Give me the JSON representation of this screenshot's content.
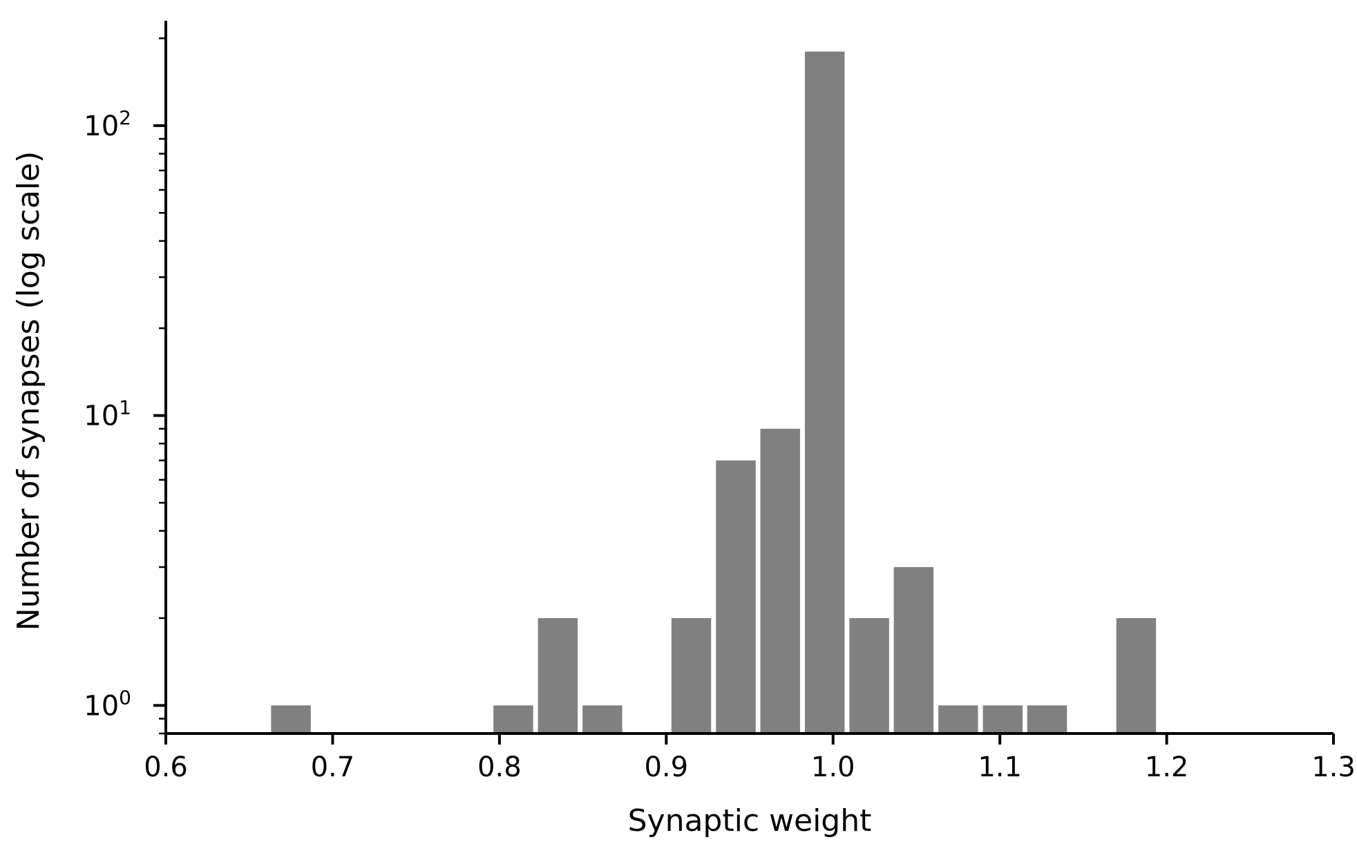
{
  "chart_data": {
    "type": "bar",
    "title": "",
    "xlabel": "Synaptic weight",
    "ylabel": "Number of synapses (log scale)",
    "xlim": [
      0.6,
      1.3
    ],
    "ylim": [
      0.8,
      230
    ],
    "yscale": "log",
    "grid": false,
    "legend": "none",
    "bar_color": "#808080",
    "bin_width": 0.025,
    "x_ticks": [
      "0.6",
      "0.7",
      "0.8",
      "0.9",
      "1.0",
      "1.1",
      "1.2",
      "1.3"
    ],
    "y_ticks": [
      {
        "base": "10",
        "exp": "0",
        "value": 1
      },
      {
        "base": "10",
        "exp": "1",
        "value": 10
      },
      {
        "base": "10",
        "exp": "2",
        "value": 100
      }
    ],
    "bins": [
      {
        "x_start": 0.6625,
        "count": 1
      },
      {
        "x_start": 0.7958,
        "count": 1
      },
      {
        "x_start": 0.8225,
        "count": 2
      },
      {
        "x_start": 0.8492,
        "count": 1
      },
      {
        "x_start": 0.9025,
        "count": 2
      },
      {
        "x_start": 0.9292,
        "count": 7
      },
      {
        "x_start": 0.9558,
        "count": 9
      },
      {
        "x_start": 0.9825,
        "count": 180
      },
      {
        "x_start": 1.0092,
        "count": 2
      },
      {
        "x_start": 1.0358,
        "count": 3
      },
      {
        "x_start": 1.0625,
        "count": 1
      },
      {
        "x_start": 1.0892,
        "count": 1
      },
      {
        "x_start": 1.1158,
        "count": 1
      },
      {
        "x_start": 1.1692,
        "count": 2
      }
    ]
  }
}
